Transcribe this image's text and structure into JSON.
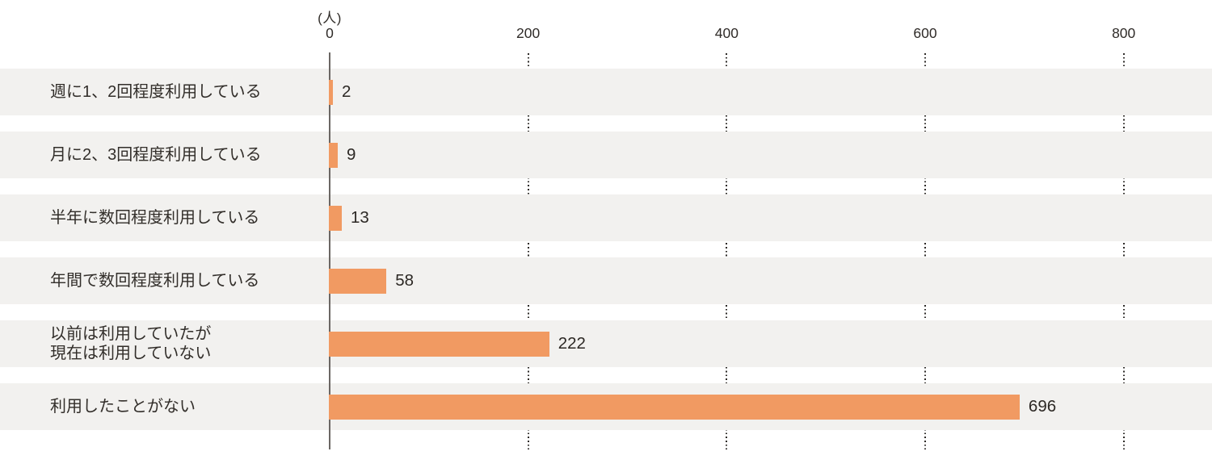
{
  "chart_data": {
    "type": "bar",
    "orientation": "horizontal",
    "title": "",
    "unit_label": "(人)",
    "categories": [
      "週に1、2回程度利用している",
      "月に2、3回程度利用している",
      "半年に数回程度利用している",
      "年間で数回程度利用している",
      "以前は利用していたが\n現在は利用していない",
      "利用したことがない"
    ],
    "values": [
      2,
      9,
      13,
      58,
      222,
      696
    ],
    "x_ticks": [
      0,
      200,
      400,
      600,
      800
    ],
    "xlim": [
      0,
      889
    ],
    "grid": "dotted vertical gridlines at each tick, hidden behind row bands",
    "legend": "none",
    "colors": {
      "bar": "#f19a62",
      "row_band": "#f2f1ef",
      "axis_line": "#6b6764",
      "grid_dot": "#2e2b28",
      "text": "#322e2a"
    }
  }
}
